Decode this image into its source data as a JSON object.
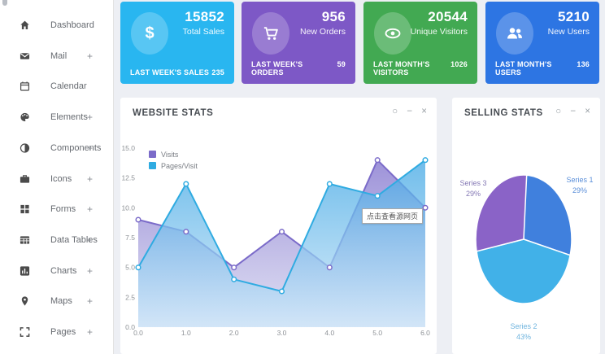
{
  "sidebar": {
    "items": [
      {
        "label": "Dashboard",
        "icon": "home-icon",
        "plus": ""
      },
      {
        "label": "Mail",
        "icon": "mail-icon",
        "plus": "+"
      },
      {
        "label": "Calendar",
        "icon": "calendar-icon",
        "plus": ""
      },
      {
        "label": "Elements",
        "icon": "palette-icon",
        "plus": "+"
      },
      {
        "label": "Components",
        "icon": "contrast-icon",
        "plus": "+"
      },
      {
        "label": "Icons",
        "icon": "briefcase-icon",
        "plus": "+"
      },
      {
        "label": "Forms",
        "icon": "grid-icon",
        "plus": "+"
      },
      {
        "label": "Data Tables",
        "icon": "table-icon",
        "plus": "+"
      },
      {
        "label": "Charts",
        "icon": "bar-chart-icon",
        "plus": "+"
      },
      {
        "label": "Maps",
        "icon": "map-marker-icon",
        "plus": "+"
      },
      {
        "label": "Pages",
        "icon": "expand-icon",
        "plus": "+"
      }
    ]
  },
  "cards": [
    {
      "value": "15852",
      "label": "Total Sales",
      "footer_label": "LAST WEEK'S SALES",
      "footer_value": "235",
      "color": "#29b6f0",
      "icon": "dollar-icon"
    },
    {
      "value": "956",
      "label": "New Orders",
      "footer_label": "LAST WEEK'S ORDERS",
      "footer_value": "59",
      "color": "#7d58c6",
      "icon": "cart-icon"
    },
    {
      "value": "20544",
      "label": "Unique Visitors",
      "footer_label": "LAST MONTH'S VISITORS",
      "footer_value": "1026",
      "color": "#42a952",
      "icon": "eye-icon"
    },
    {
      "value": "5210",
      "label": "New Users",
      "footer_label": "LAST MONTH'S USERS",
      "footer_value": "136",
      "color": "#2d75e3",
      "icon": "users-icon"
    }
  ],
  "panels": {
    "website_stats": {
      "title": "WEBSITE STATS"
    },
    "selling_stats": {
      "title": "SELLING STATS"
    },
    "controls": {
      "refresh": "○",
      "collapse": "−",
      "close": "×"
    }
  },
  "tooltip": {
    "text": "点击查看源网页"
  },
  "chart_data": [
    {
      "type": "area",
      "title": "WEBSITE STATS",
      "x": [
        0,
        1,
        2,
        3,
        4,
        5,
        6
      ],
      "xtick_labels": [
        "0.0",
        "1.0",
        "2.0",
        "3.0",
        "4.0",
        "5.0",
        "6.0"
      ],
      "ytick_labels": [
        "0.0",
        "2.5",
        "5.0",
        "7.5",
        "10.0",
        "12.5",
        "15.0"
      ],
      "yticks": [
        0,
        2.5,
        5,
        7.5,
        10,
        12.5,
        15
      ],
      "ylim": [
        0,
        15
      ],
      "xlim": [
        0,
        6
      ],
      "grid": false,
      "legend_position": "top-left",
      "series": [
        {
          "name": "Visits",
          "color": "#7b6bc9",
          "values": [
            9,
            8,
            5,
            8,
            5,
            14,
            10
          ]
        },
        {
          "name": "Pages/Visit",
          "color": "#2fabe1",
          "values": [
            5,
            12,
            4,
            3,
            12,
            11,
            14
          ]
        }
      ]
    },
    {
      "type": "pie",
      "title": "SELLING STATS",
      "slices": [
        {
          "name": "Series 1",
          "pct": 29,
          "color": "#4080dd",
          "label_color": "#5b8fd9"
        },
        {
          "name": "Series 2",
          "pct": 43,
          "color": "#41b1e8",
          "label_color": "#6fb4de"
        },
        {
          "name": "Series 3",
          "pct": 29,
          "color": "#8a63c7",
          "label_color": "#8579b5"
        }
      ]
    }
  ]
}
